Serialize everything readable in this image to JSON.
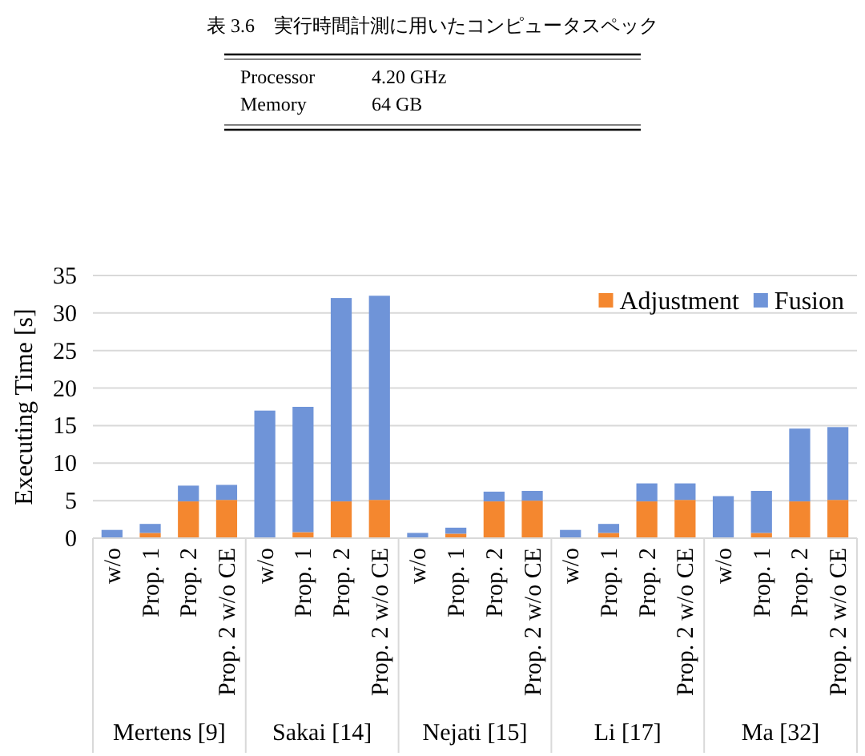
{
  "chart_data": {
    "type": "bar",
    "stacked": true,
    "ylabel": "Executing Time [s]",
    "categories": [
      "w/o",
      "Prop. 1",
      "Prop. 2",
      "Prop. 2 w/o CE",
      "w/o",
      "Prop. 1",
      "Prop. 2",
      "Prop. 2 w/o CE",
      "w/o",
      "Prop. 1",
      "Prop. 2",
      "Prop. 2 w/o CE",
      "w/o",
      "Prop. 1",
      "Prop. 2",
      "Prop. 2 w/o CE",
      "w/o",
      "Prop. 1",
      "Prop. 2",
      "Prop. 2 w/o CE"
    ],
    "series": [
      {
        "name": "Adjustment",
        "color": "#f4872f",
        "values": [
          0,
          0.7,
          4.9,
          5.1,
          0,
          0.8,
          4.9,
          5.1,
          0,
          0.6,
          4.9,
          5.0,
          0,
          0.7,
          4.9,
          5.1,
          0,
          0.7,
          4.9,
          5.1
        ]
      },
      {
        "name": "Fusion",
        "color": "#6f94d8",
        "values": [
          1.1,
          1.2,
          2.1,
          2.0,
          17.0,
          16.7,
          27.1,
          27.2,
          0.7,
          0.8,
          1.3,
          1.3,
          1.1,
          1.2,
          2.4,
          2.2,
          5.6,
          5.6,
          9.7,
          9.7
        ]
      }
    ],
    "ylim": [
      0,
      35
    ],
    "yticks": [
      0,
      5,
      10,
      15,
      20,
      25,
      30,
      35
    ],
    "grid": "y",
    "legend": "top right",
    "annotations": [
      "表 3.6　実行時間計測に用いたコンピュータスペック",
      "Processor",
      "4.20 GHz",
      "Memory",
      "64 GB",
      "Mertens [9]",
      "Sakai [14]",
      "Nejati [15]",
      "Li [17]",
      "Ma [32]"
    ]
  }
}
